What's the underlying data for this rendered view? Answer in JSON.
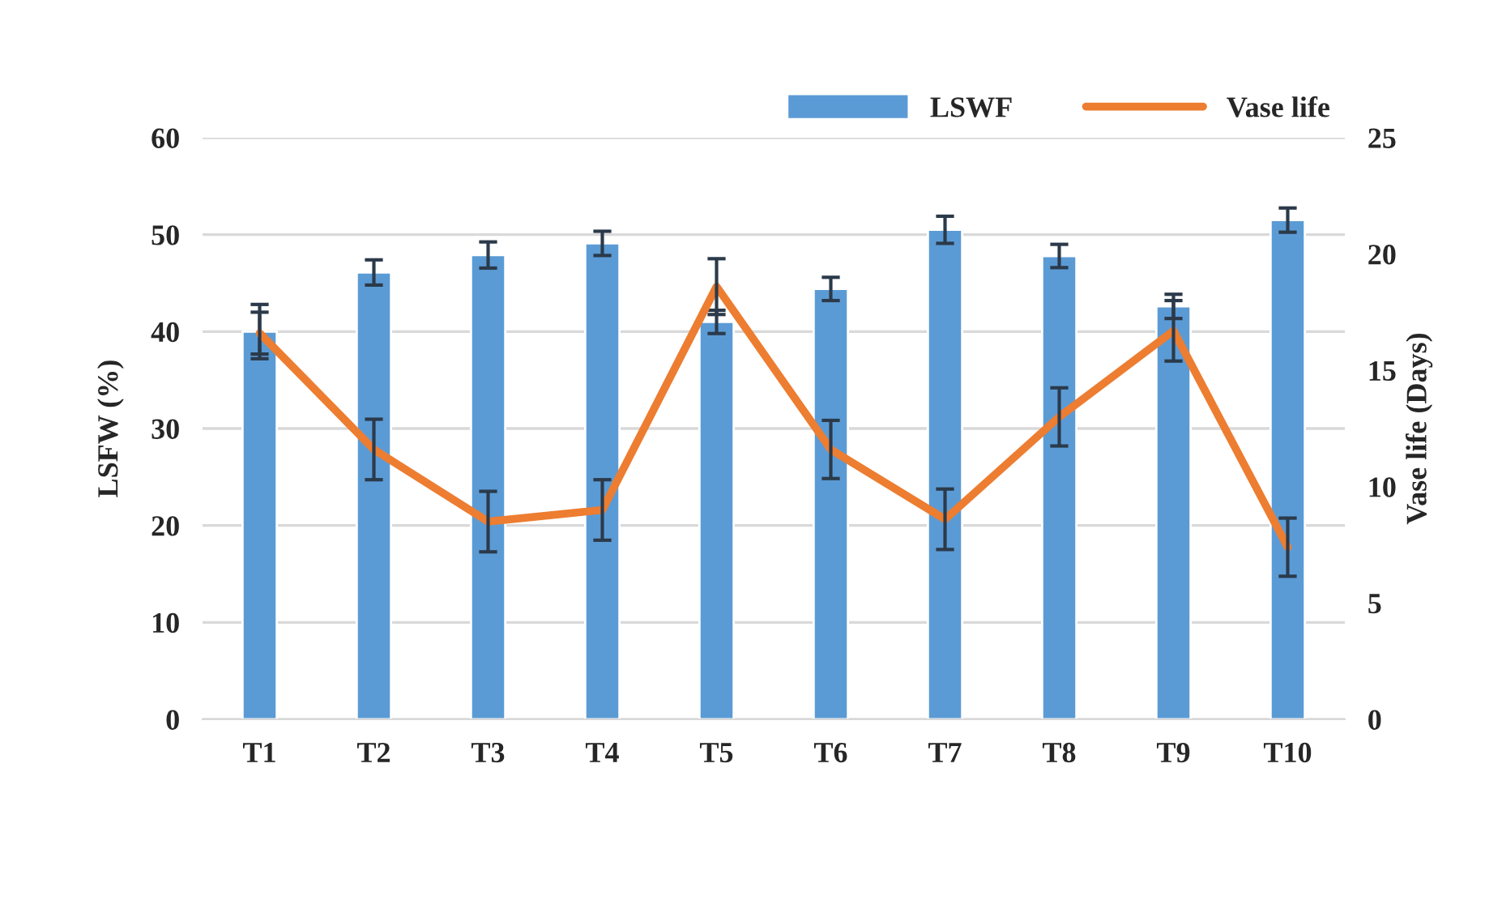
{
  "chart_data": {
    "type": "bar",
    "categories": [
      "T1",
      "T2",
      "T3",
      "T4",
      "T5",
      "T6",
      "T7",
      "T8",
      "T9",
      "T10"
    ],
    "series": [
      {
        "name": "LSWF",
        "color": "#5b9bd5",
        "values": [
          40,
          46.1,
          47.9,
          49.1,
          41,
          44.4,
          50.5,
          47.8,
          42.6,
          51.5
        ],
        "errors": [
          2.8,
          1.3,
          1.35,
          1.25,
          1.2,
          1.2,
          1.4,
          1.2,
          1.25,
          1.25
        ]
      },
      {
        "name": "Vase life",
        "type": "line",
        "axis": "y2",
        "color": "#ed7d31",
        "values": [
          16.6,
          11.6,
          8.5,
          9.0,
          18.6,
          11.6,
          8.6,
          13.0,
          16.7,
          7.4
        ],
        "errors": [
          0.9,
          1.3,
          1.3,
          1.3,
          1.2,
          1.25,
          1.3,
          1.25,
          1.3,
          1.25
        ]
      }
    ],
    "ylabel": "LSFW (%)",
    "y2label": "Vase life (Days)",
    "ylim": [
      0,
      60
    ],
    "yticks": [
      0,
      10,
      20,
      30,
      40,
      50,
      60
    ],
    "y2lim": [
      0,
      25
    ],
    "y2ticks": [
      0,
      5,
      10,
      15,
      20,
      25
    ],
    "grid": "y",
    "legend": "top right",
    "marker": "none",
    "line_style": "solid"
  }
}
